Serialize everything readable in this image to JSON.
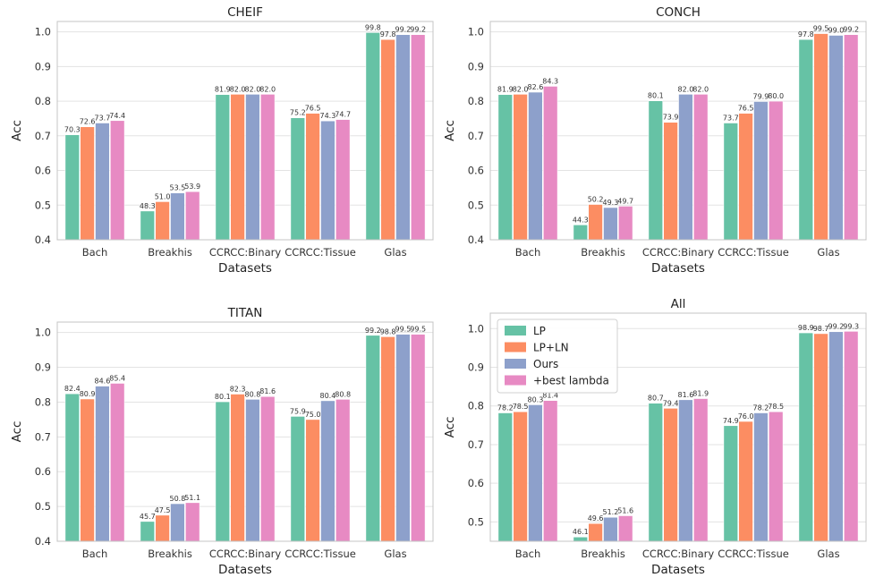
{
  "series_colors": [
    "#66c2a5",
    "#fc8d62",
    "#8da0cb",
    "#e78ac3"
  ],
  "chart_data": [
    {
      "type": "bar",
      "title": "CHEIF",
      "xlabel": "Datasets",
      "ylabel": "Acc",
      "ylim": [
        0.4,
        1.03
      ],
      "yticks": [
        "0.4",
        "0.5",
        "0.6",
        "0.7",
        "0.8",
        "0.9",
        "1.0"
      ],
      "grid": true,
      "categories": [
        "Bach",
        "Breakhis",
        "CCRCC:Binary",
        "CCRCC:Tissue",
        "Glas"
      ],
      "series": [
        {
          "name": "LP",
          "values": [
            0.703,
            0.483,
            0.819,
            0.752,
            0.998
          ],
          "labels": [
            "70.3",
            "48.3",
            "81.9",
            "75.2",
            "99.8"
          ]
        },
        {
          "name": "LP+LN",
          "values": [
            0.726,
            0.51,
            0.82,
            0.765,
            0.978
          ],
          "labels": [
            "72.6",
            "51.0",
            "82.0",
            "76.5",
            "97.8"
          ]
        },
        {
          "name": "Ours",
          "values": [
            0.737,
            0.535,
            0.82,
            0.743,
            0.992
          ],
          "labels": [
            "73.7",
            "53.5",
            "82.0",
            "74.3",
            "99.2"
          ]
        },
        {
          "name": "+best lambda",
          "values": [
            0.744,
            0.539,
            0.82,
            0.747,
            0.992
          ],
          "labels": [
            "74.4",
            "53.9",
            "82.0",
            "74.7",
            "99.2"
          ]
        }
      ]
    },
    {
      "type": "bar",
      "title": "CONCH",
      "xlabel": "Datasets",
      "ylabel": "Acc",
      "ylim": [
        0.4,
        1.03
      ],
      "yticks": [
        "0.4",
        "0.5",
        "0.6",
        "0.7",
        "0.8",
        "0.9",
        "1.0"
      ],
      "grid": true,
      "categories": [
        "Bach",
        "Breakhis",
        "CCRCC:Binary",
        "CCRCC:Tissue",
        "Glas"
      ],
      "series": [
        {
          "name": "LP",
          "values": [
            0.819,
            0.443,
            0.801,
            0.737,
            0.978
          ],
          "labels": [
            "81.9",
            "44.3",
            "80.1",
            "73.7",
            "97.8"
          ]
        },
        {
          "name": "LP+LN",
          "values": [
            0.82,
            0.502,
            0.739,
            0.765,
            0.995
          ],
          "labels": [
            "82.0",
            "50.2",
            "73.9",
            "76.5",
            "99.5"
          ]
        },
        {
          "name": "Ours",
          "values": [
            0.826,
            0.493,
            0.82,
            0.799,
            0.99
          ],
          "labels": [
            "82.6",
            "49.3",
            "82.0",
            "79.9",
            "99.0"
          ]
        },
        {
          "name": "+best lambda",
          "values": [
            0.843,
            0.497,
            0.82,
            0.8,
            0.992
          ],
          "labels": [
            "84.3",
            "49.7",
            "82.0",
            "80.0",
            "99.2"
          ]
        }
      ]
    },
    {
      "type": "bar",
      "title": "TITAN",
      "xlabel": "Datasets",
      "ylabel": "Acc",
      "ylim": [
        0.4,
        1.03
      ],
      "yticks": [
        "0.4",
        "0.5",
        "0.6",
        "0.7",
        "0.8",
        "0.9",
        "1.0"
      ],
      "grid": true,
      "categories": [
        "Bach",
        "Breakhis",
        "CCRCC:Binary",
        "CCRCC:Tissue",
        "Glas"
      ],
      "series": [
        {
          "name": "LP",
          "values": [
            0.824,
            0.457,
            0.801,
            0.759,
            0.992
          ],
          "labels": [
            "82.4",
            "45.7",
            "80.1",
            "75.9",
            "99.2"
          ]
        },
        {
          "name": "LP+LN",
          "values": [
            0.809,
            0.475,
            0.823,
            0.75,
            0.988
          ],
          "labels": [
            "80.9",
            "47.5",
            "82.3",
            "75.0",
            "98.8"
          ]
        },
        {
          "name": "Ours",
          "values": [
            0.846,
            0.508,
            0.808,
            0.804,
            0.995
          ],
          "labels": [
            "84.6",
            "50.8",
            "80.8",
            "80.4",
            "99.5"
          ]
        },
        {
          "name": "+best lambda",
          "values": [
            0.854,
            0.511,
            0.816,
            0.808,
            0.995
          ],
          "labels": [
            "85.4",
            "51.1",
            "81.6",
            "80.8",
            "99.5"
          ]
        }
      ]
    },
    {
      "type": "bar",
      "title": "All",
      "xlabel": "Datasets",
      "ylabel": "Acc",
      "ylim": [
        0.45,
        1.04
      ],
      "yticks": [
        "0.5",
        "0.6",
        "0.7",
        "0.8",
        "0.9",
        "1.0"
      ],
      "grid": true,
      "legend": {
        "position": "upper-left",
        "entries": [
          "LP",
          "LP+LN",
          "Ours",
          "+best lambda"
        ]
      },
      "categories": [
        "Bach",
        "Breakhis",
        "CCRCC:Binary",
        "CCRCC:Tissue",
        "Glas"
      ],
      "series": [
        {
          "name": "LP",
          "values": [
            0.782,
            0.461,
            0.807,
            0.749,
            0.989
          ],
          "labels": [
            "78.2",
            "46.1",
            "80.7",
            "74.9",
            "98.9"
          ]
        },
        {
          "name": "LP+LN",
          "values": [
            0.785,
            0.496,
            0.794,
            0.76,
            0.987
          ],
          "labels": [
            "78.5",
            "49.6",
            "79.4",
            "76.0",
            "98.7"
          ]
        },
        {
          "name": "Ours",
          "values": [
            0.803,
            0.512,
            0.816,
            0.782,
            0.992
          ],
          "labels": [
            "80.3",
            "51.2",
            "81.6",
            "78.2",
            "99.2"
          ]
        },
        {
          "name": "+best lambda",
          "values": [
            0.814,
            0.516,
            0.819,
            0.785,
            0.993
          ],
          "labels": [
            "81.4",
            "51.6",
            "81.9",
            "78.5",
            "99.3"
          ]
        }
      ]
    }
  ]
}
